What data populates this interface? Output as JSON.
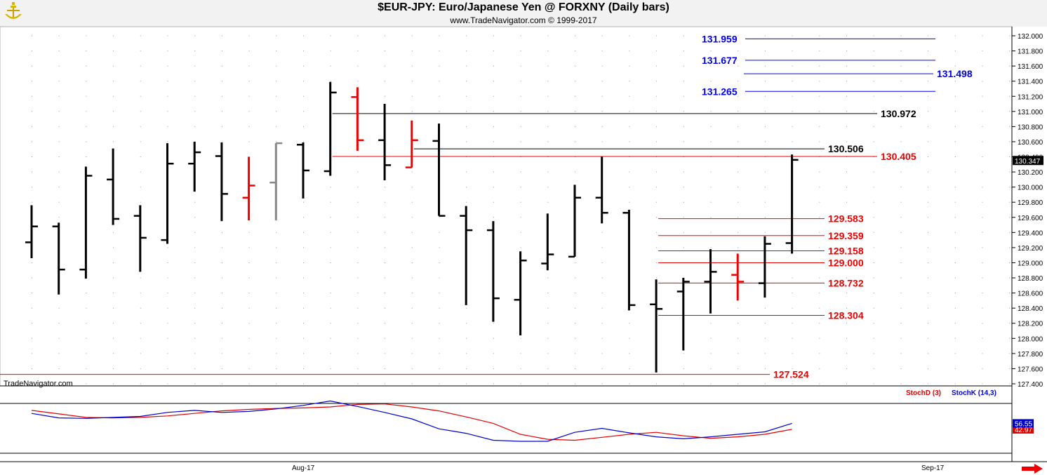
{
  "header": {
    "title": "$EUR-JPY:  Euro/Japanese Yen @ FORXNY  (Daily bars)",
    "copyright": "www.TradeNavigator.com © 1999-2017"
  },
  "watermark": "TradeNavigator.com",
  "colors": {
    "up_bar": "#000000",
    "down_bar": "#ee0000",
    "neutral_bar": "#888888",
    "fib_blue": "#0000ee",
    "stoch_d": "#e00000",
    "stoch_k": "#0000cc"
  },
  "chart_data": [
    {
      "type": "bar",
      "subtype": "ohlc",
      "ylim": [
        127.3,
        132.1
      ],
      "y_ticks": [
        "132.000",
        "131.800",
        "131.600",
        "131.400",
        "131.200",
        "131.000",
        "130.800",
        "130.600",
        "130.400",
        "130.200",
        "130.000",
        "129.800",
        "129.600",
        "129.400",
        "129.200",
        "129.000",
        "128.800",
        "128.600",
        "128.400",
        "128.200",
        "128.000",
        "127.800",
        "127.600",
        "127.400"
      ],
      "x_ticks": [
        "Aug-17",
        "Sep-17"
      ],
      "last_price": "130.347",
      "bars": [
        {
          "o": 129.27,
          "h": 129.76,
          "l": 129.06,
          "c": 129.48,
          "color": "black"
        },
        {
          "o": 129.48,
          "h": 129.53,
          "l": 128.58,
          "c": 128.91,
          "color": "black"
        },
        {
          "o": 128.91,
          "h": 130.27,
          "l": 128.79,
          "c": 130.15,
          "color": "black"
        },
        {
          "o": 130.1,
          "h": 130.51,
          "l": 129.5,
          "c": 129.58,
          "color": "black"
        },
        {
          "o": 129.62,
          "h": 129.76,
          "l": 128.88,
          "c": 129.33,
          "color": "black"
        },
        {
          "o": 129.3,
          "h": 130.58,
          "l": 129.25,
          "c": 130.31,
          "color": "black"
        },
        {
          "o": 130.31,
          "h": 130.6,
          "l": 129.94,
          "c": 130.46,
          "color": "black"
        },
        {
          "o": 130.41,
          "h": 130.59,
          "l": 129.55,
          "c": 129.91,
          "color": "black"
        },
        {
          "o": 129.86,
          "h": 130.4,
          "l": 129.56,
          "c": 130.02,
          "color": "red"
        },
        {
          "o": 130.06,
          "h": 130.58,
          "l": 129.56,
          "c": 130.58,
          "color": "gray"
        },
        {
          "o": 130.56,
          "h": 130.59,
          "l": 129.85,
          "c": 130.22,
          "color": "black"
        },
        {
          "o": 130.21,
          "h": 131.39,
          "l": 130.15,
          "c": 131.25,
          "color": "black"
        },
        {
          "o": 131.19,
          "h": 131.32,
          "l": 130.48,
          "c": 130.62,
          "color": "red"
        },
        {
          "o": 130.62,
          "h": 131.1,
          "l": 130.09,
          "c": 130.29,
          "color": "black"
        },
        {
          "o": 130.26,
          "h": 130.88,
          "l": 130.26,
          "c": 130.62,
          "color": "red"
        },
        {
          "o": 130.61,
          "h": 130.84,
          "l": 129.62,
          "c": 129.62,
          "color": "black"
        },
        {
          "o": 129.62,
          "h": 129.75,
          "l": 128.44,
          "c": 129.43,
          "color": "black"
        },
        {
          "o": 129.43,
          "h": 129.55,
          "l": 128.22,
          "c": 128.53,
          "color": "black"
        },
        {
          "o": 128.51,
          "h": 129.15,
          "l": 128.04,
          "c": 129.03,
          "color": "black"
        },
        {
          "o": 128.99,
          "h": 129.65,
          "l": 128.9,
          "c": 129.11,
          "color": "black"
        },
        {
          "o": 129.08,
          "h": 130.03,
          "l": 129.08,
          "c": 129.86,
          "color": "black"
        },
        {
          "o": 129.86,
          "h": 130.4,
          "l": 129.52,
          "c": 129.66,
          "color": "black"
        },
        {
          "o": 129.66,
          "h": 129.7,
          "l": 128.37,
          "c": 128.44,
          "color": "black"
        },
        {
          "o": 128.45,
          "h": 128.78,
          "l": 127.55,
          "c": 128.39,
          "color": "black"
        },
        {
          "o": 128.62,
          "h": 128.8,
          "l": 127.84,
          "c": 128.75,
          "color": "black"
        },
        {
          "o": 128.75,
          "h": 129.18,
          "l": 128.33,
          "c": 128.88,
          "color": "black"
        },
        {
          "o": 128.84,
          "h": 129.12,
          "l": 128.5,
          "c": 128.75,
          "color": "red"
        },
        {
          "o": 128.73,
          "h": 129.35,
          "l": 128.54,
          "c": 129.25,
          "color": "black"
        },
        {
          "o": 129.26,
          "h": 130.43,
          "l": 129.12,
          "c": 130.36,
          "color": "black"
        }
      ],
      "levels": [
        {
          "value": 131.959,
          "label": "131.959",
          "color": "blue",
          "x_start_bar": 26,
          "x_end": "right",
          "label_side": "left"
        },
        {
          "value": 131.677,
          "label": "131.677",
          "color": "blue",
          "x_start_bar": 26,
          "x_end": "right",
          "label_side": "left"
        },
        {
          "value": 131.498,
          "label": "131.498",
          "color": "blue",
          "x_start_bar": 26,
          "x_end": "right",
          "label_side": "right"
        },
        {
          "value": 131.265,
          "label": "131.265",
          "color": "blue",
          "x_start_bar": 26,
          "x_end": "right",
          "label_side": "left"
        },
        {
          "value": 130.972,
          "label": "130.972",
          "color": "black",
          "x_start_bar": 11,
          "x_end": "mid",
          "label_side": "right"
        },
        {
          "value": 130.506,
          "label": "130.506",
          "color": "black",
          "x_start_bar": 14,
          "x_end": "short",
          "label_side": "right"
        },
        {
          "value": 130.405,
          "label": "130.405",
          "color": "red",
          "x_start_bar": 11,
          "x_end": "mid",
          "label_side": "right"
        },
        {
          "value": 129.583,
          "label": "129.583",
          "color": "red",
          "x_start_bar": 23,
          "x_end": "short",
          "label_side": "right"
        },
        {
          "value": 129.359,
          "label": "129.359",
          "color": "red",
          "x_start_bar": 23,
          "x_end": "short",
          "label_side": "right"
        },
        {
          "value": 129.158,
          "label": "129.158",
          "color": "red",
          "x_start_bar": 23,
          "x_end": "short",
          "label_side": "right"
        },
        {
          "value": 129.0,
          "label": "129.000",
          "color": "red",
          "x_start_bar": 23,
          "x_end": "short",
          "label_side": "right"
        },
        {
          "value": 128.732,
          "label": "128.732",
          "color": "red",
          "x_start_bar": 23,
          "x_end": "short",
          "label_side": "right"
        },
        {
          "value": 128.304,
          "label": "128.304",
          "color": "red",
          "x_start_bar": 23,
          "x_end": "short",
          "label_side": "right"
        },
        {
          "value": 127.524,
          "label": "127.524",
          "color": "red",
          "x_start_bar": -1,
          "x_end": "low",
          "label_side": "right"
        }
      ]
    },
    {
      "type": "line",
      "ylim": [
        0,
        100
      ],
      "series": [
        {
          "name": "StochD (3)",
          "label": "StochD (3)",
          "color": "red",
          "values": [
            86,
            79,
            72,
            71,
            72,
            75,
            80,
            85,
            88,
            90,
            91,
            93,
            98,
            99,
            93,
            85,
            73,
            60,
            38,
            28,
            26,
            32,
            38,
            42,
            35,
            30,
            33,
            38,
            48
          ],
          "last": "42.97"
        },
        {
          "name": "StochK (14,3)",
          "label": "StochK (14,3)",
          "color": "blue",
          "values": [
            80,
            71,
            70,
            72,
            74,
            82,
            86,
            82,
            84,
            89,
            96,
            105,
            94,
            82,
            69,
            49,
            40,
            26,
            24,
            24,
            42,
            50,
            41,
            33,
            29,
            33,
            38,
            43,
            60
          ],
          "last": "56.55"
        }
      ]
    }
  ]
}
